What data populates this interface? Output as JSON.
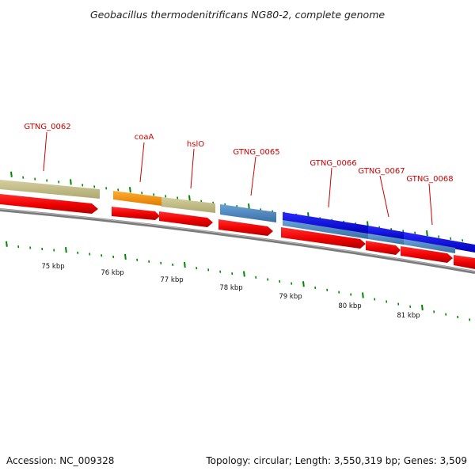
{
  "title": "Geobacillus thermodenitrificans NG80-2, complete genome",
  "footer": {
    "accession": "Accession: NC_009328",
    "summary": "Topology: circular; Length: 3,550,319 bp; Genes: 3,509"
  },
  "colors": {
    "label": "#cc0000",
    "tick": "#008800",
    "backbone": "#888888",
    "cds_red": "#ff0000",
    "gene_olive": "#c8c28c",
    "gene_orange": "#ff9900",
    "gene_steel": "#4a86c0",
    "gene_blue": "#0000ee"
  },
  "axis": {
    "unit_label": "kbp",
    "major_labels": [
      "75 kbp",
      "76 kbp",
      "77 kbp",
      "78 kbp",
      "79 kbp",
      "80 kbp",
      "81 kbp"
    ]
  },
  "genes": [
    {
      "name": "GTNG_0062",
      "label": "GTNG_0062"
    },
    {
      "name": "coaA",
      "label": "coaA"
    },
    {
      "name": "hslO",
      "label": "hslO"
    },
    {
      "name": "GTNG_0065",
      "label": "GTNG_0065"
    },
    {
      "name": "GTNG_0066",
      "label": "GTNG_0066"
    },
    {
      "name": "GTNG_0067",
      "label": "GTNG_0067"
    },
    {
      "name": "GTNG_0068",
      "label": "GTNG_0068"
    }
  ]
}
